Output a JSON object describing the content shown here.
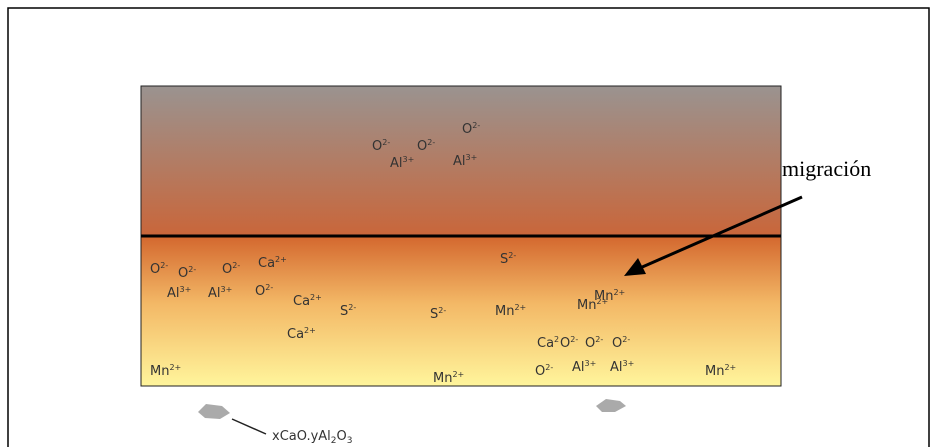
{
  "diagram": {
    "ions": [
      {
        "symbol": "O",
        "charge": "2-"
      },
      {
        "symbol": "O",
        "charge": "2-"
      },
      {
        "symbol": "O",
        "charge": "2-"
      },
      {
        "symbol": "Al",
        "charge": "3+"
      },
      {
        "symbol": "Al",
        "charge": "3+"
      },
      {
        "symbol": "O",
        "charge": "2-"
      },
      {
        "symbol": "O",
        "charge": "2-"
      },
      {
        "symbol": "O",
        "charge": "2-"
      },
      {
        "symbol": "Ca",
        "charge": "2+"
      },
      {
        "symbol": "Al",
        "charge": "3+"
      },
      {
        "symbol": "Al",
        "charge": "3+"
      },
      {
        "symbol": "O",
        "charge": "2-"
      },
      {
        "symbol": "Ca",
        "charge": "2+"
      },
      {
        "symbol": "S",
        "charge": "2-"
      },
      {
        "symbol": "Ca",
        "charge": "2+"
      },
      {
        "symbol": "S",
        "charge": "2-"
      },
      {
        "symbol": "S",
        "charge": "2-"
      },
      {
        "symbol": "Mn",
        "charge": "2+"
      },
      {
        "symbol": "Mn",
        "charge": "2+"
      },
      {
        "symbol": "Mn",
        "charge": "2+"
      },
      {
        "symbol": "Ca",
        "charge": "2"
      },
      {
        "symbol": "O",
        "charge": "2-"
      },
      {
        "symbol": "O",
        "charge": "2-"
      },
      {
        "symbol": "O",
        "charge": "2-"
      },
      {
        "symbol": "O",
        "charge": "2-"
      },
      {
        "symbol": "Al",
        "charge": "3+"
      },
      {
        "symbol": "Al",
        "charge": "3+"
      },
      {
        "symbol": "Mn",
        "charge": "2+"
      },
      {
        "symbol": "Mn",
        "charge": "2+"
      },
      {
        "symbol": "Mn",
        "charge": "2+"
      }
    ],
    "arrow_label": "migración",
    "inclusion_label": [
      "xCaO.yAl",
      "2",
      "O",
      "3"
    ]
  }
}
